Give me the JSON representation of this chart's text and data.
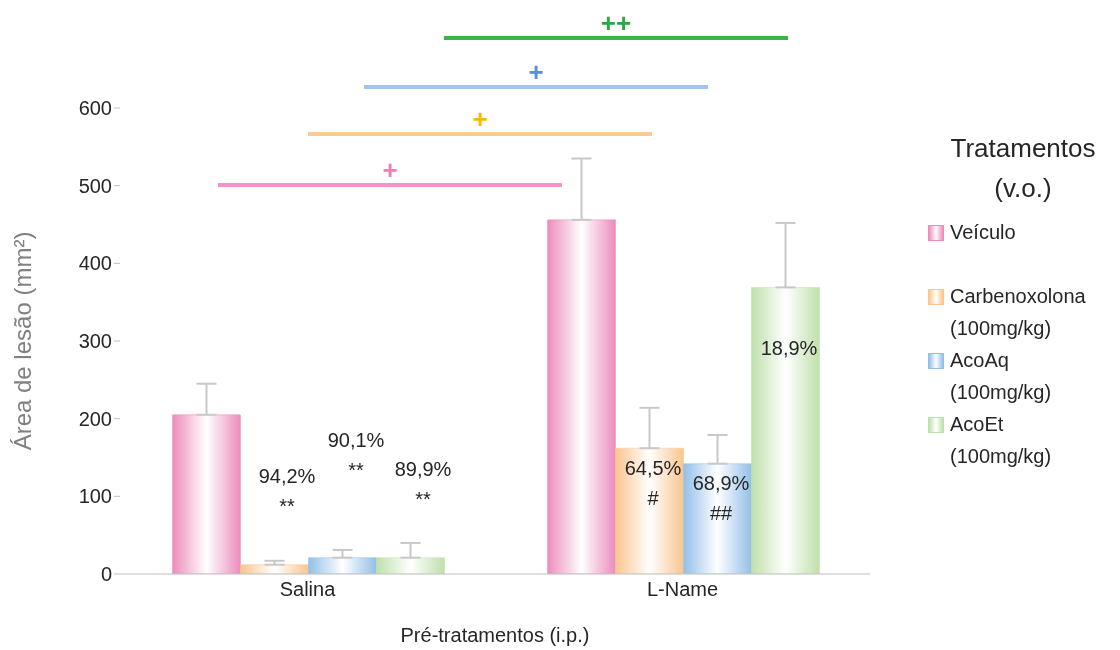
{
  "chart_data": {
    "type": "bar",
    "xlabel": "Pré-tratamentos (i.p.)",
    "ylabel": "Área de lesão (mm²)",
    "legend_title": "Tratamentos (v.o.)",
    "legend": "right",
    "grid": false,
    "categories": [
      "Salina",
      "L-Name"
    ],
    "ylim": [
      0,
      600
    ],
    "yticks": [
      0,
      100,
      200,
      300,
      400,
      500,
      600
    ],
    "series": [
      {
        "name": "Veículo",
        "color": "#ec8cbc",
        "values": [
          205,
          456
        ],
        "errors": [
          [
            205,
            245
          ],
          [
            456,
            535
          ]
        ]
      },
      {
        "name": "Carbenoxolona (100mg/kg)",
        "color": "#f9c58e",
        "values": [
          12,
          162
        ],
        "errors": [
          [
            12,
            17
          ],
          [
            162,
            214
          ]
        ]
      },
      {
        "name": "AcoAq (100mg/kg)",
        "color": "#92bfe8",
        "values": [
          21,
          142
        ],
        "errors": [
          [
            21,
            31
          ],
          [
            142,
            179
          ]
        ]
      },
      {
        "name": "AcoEt (100mg/kg)",
        "color": "#bfe0ab",
        "values": [
          21,
          369
        ],
        "errors": [
          [
            21,
            40
          ],
          [
            369,
            452
          ]
        ]
      }
    ],
    "annotations": [
      "+",
      "+",
      "+",
      "++",
      "94,2%\n**",
      "90,1%\n**",
      "89,9%\n**",
      "64,5%\n#",
      "68,9%\n##",
      "18,9%"
    ]
  }
}
